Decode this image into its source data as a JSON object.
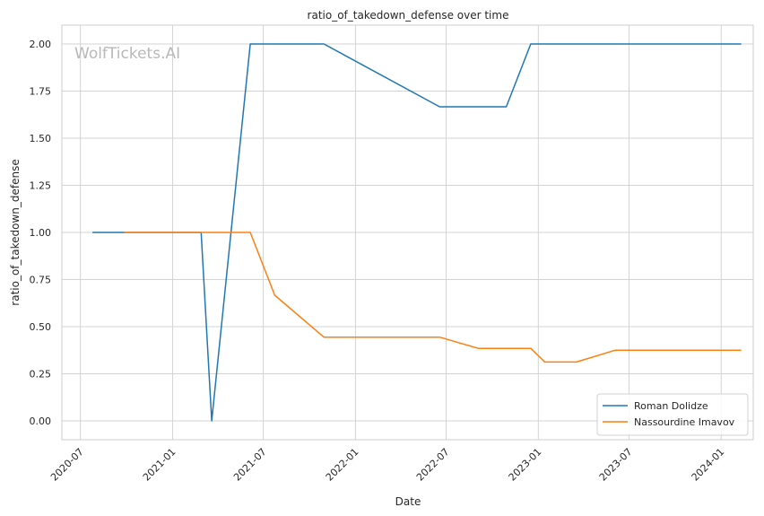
{
  "chart_data": {
    "type": "line",
    "title": "ratio_of_takedown_defense over time",
    "xlabel": "Date",
    "ylabel": "ratio_of_takedown_defense",
    "watermark": "WolfTickets.AI",
    "xlim": [
      "2020-05-25",
      "2024-03-05"
    ],
    "ylim": [
      -0.1,
      2.1
    ],
    "x_ticks": [
      "2020-07",
      "2021-01",
      "2021-07",
      "2022-01",
      "2022-07",
      "2023-01",
      "2023-07",
      "2024-01"
    ],
    "x_tick_dates": [
      "2020-07-01",
      "2021-01-01",
      "2021-07-01",
      "2022-01-01",
      "2022-07-01",
      "2023-01-01",
      "2023-07-01",
      "2024-01-01"
    ],
    "y_ticks": [
      "0.00",
      "0.25",
      "0.50",
      "0.75",
      "1.00",
      "1.25",
      "1.50",
      "1.75",
      "2.00"
    ],
    "y_tick_values": [
      0,
      0.25,
      0.5,
      0.75,
      1.0,
      1.25,
      1.5,
      1.75,
      2.0
    ],
    "grid": true,
    "legend_position": "bottom-right",
    "series": [
      {
        "name": "Roman Dolidze",
        "color": "#1f77b4",
        "x": [
          "2020-07-25",
          "2020-09-26",
          "2021-02-27",
          "2021-03-20",
          "2021-06-05",
          "2021-10-30",
          "2022-06-18",
          "2022-10-29",
          "2022-12-17",
          "2024-02-10"
        ],
        "y": [
          1.0,
          1.0,
          1.0,
          0.0,
          2.0,
          2.0,
          1.6667,
          1.6667,
          2.0,
          2.0
        ]
      },
      {
        "name": "Nassourdine Imavov",
        "color": "#ff7f0e",
        "x": [
          "2020-09-26",
          "2021-06-05",
          "2021-07-24",
          "2021-10-30",
          "2022-06-18",
          "2022-09-03",
          "2022-12-17",
          "2023-01-14",
          "2023-03-18",
          "2023-06-03",
          "2024-02-10"
        ],
        "y": [
          1.0,
          1.0,
          0.6667,
          0.4444,
          0.4444,
          0.3846,
          0.3846,
          0.3125,
          0.3125,
          0.375,
          0.375
        ]
      }
    ]
  }
}
